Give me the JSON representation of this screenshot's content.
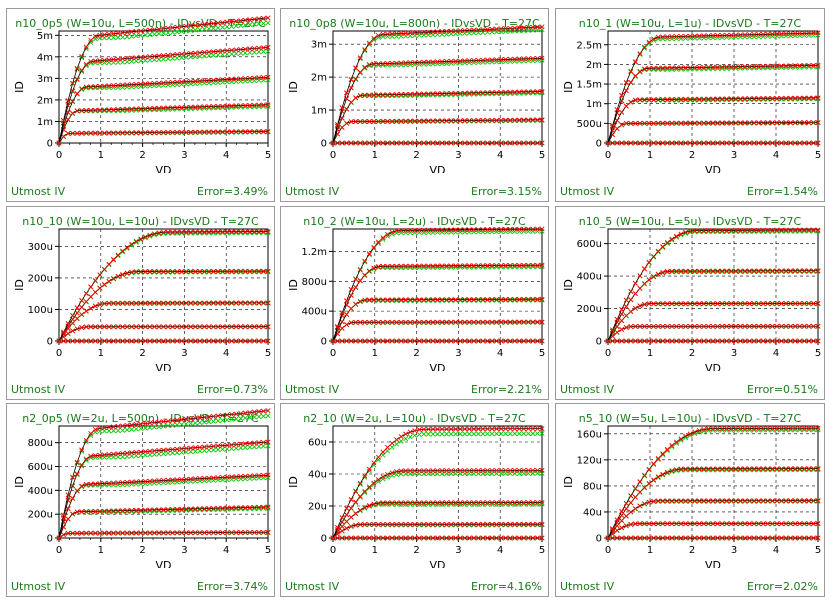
{
  "colors": {
    "simulated": "#ff0000",
    "measured": "#00cc00",
    "text": "#1a7a1a",
    "grid": "#000000"
  },
  "chart_data": [
    {
      "type": "line",
      "title": "n10_0p5 (W=10u, L=500n) - IDvsVD - T=27C",
      "xlabel": "VD",
      "ylabel": "ID",
      "xlim": [
        0,
        5
      ],
      "ylim": [
        0,
        0.0052
      ],
      "xticks": [
        0,
        1,
        2,
        3,
        4,
        5
      ],
      "xticklabels": [
        "0",
        "1",
        "2",
        "3",
        "4",
        "5"
      ],
      "yticks": [
        0,
        0.001,
        0.002,
        0.003,
        0.004,
        0.005
      ],
      "yticklabels": [
        "0",
        "1m",
        "2m",
        "3m",
        "4m",
        "5m"
      ],
      "curves_ysat": [
        0.00045,
        0.0015,
        0.0026,
        0.0038,
        0.005
      ],
      "vdsat": [
        0.25,
        0.45,
        0.65,
        0.8,
        0.95
      ],
      "slope": 0.2,
      "spread": 0.04,
      "footer_left": "Utmost IV",
      "footer_right": "Error=3.49%"
    },
    {
      "type": "line",
      "title": "n10_0p8 (W=10u, L=800n) - IDvsVD - T=27C",
      "xlabel": "VD",
      "ylabel": "ID",
      "xlim": [
        0,
        5
      ],
      "ylim": [
        0,
        0.0034
      ],
      "xticks": [
        0,
        1,
        2,
        3,
        4,
        5
      ],
      "xticklabels": [
        "0",
        "1",
        "2",
        "3",
        "4",
        "5"
      ],
      "yticks": [
        0,
        0.001,
        0.002,
        0.003
      ],
      "yticklabels": [
        "0",
        "1m",
        "2m",
        "3m"
      ],
      "curves_ysat": [
        0.0,
        0.00065,
        0.00145,
        0.0024,
        0.0033
      ],
      "vdsat": [
        0.2,
        0.45,
        0.7,
        0.95,
        1.2
      ],
      "slope": 0.09,
      "spread": 0.025,
      "footer_left": "Utmost IV",
      "footer_right": "Error=3.15%"
    },
    {
      "type": "line",
      "title": "n10_1 (W=10u, L=1u) - IDvsVD - T=27C",
      "xlabel": "VD",
      "ylabel": "ID",
      "xlim": [
        0,
        5
      ],
      "ylim": [
        0,
        0.00285
      ],
      "xticks": [
        0,
        1,
        2,
        3,
        4,
        5
      ],
      "xticklabels": [
        "0",
        "1",
        "2",
        "3",
        "4",
        "5"
      ],
      "yticks": [
        0,
        0.0005,
        0.001,
        0.0015,
        0.002,
        0.0025
      ],
      "yticklabels": [
        "0",
        "500u",
        "1m",
        "1.5m",
        "2m",
        "2.5m"
      ],
      "curves_ysat": [
        0.0,
        0.0005,
        0.0011,
        0.0019,
        0.0027
      ],
      "vdsat": [
        0.2,
        0.45,
        0.7,
        0.95,
        1.25
      ],
      "slope": 0.05,
      "spread": 0.02,
      "footer_left": "Utmost IV",
      "footer_right": "Error=1.54%"
    },
    {
      "type": "line",
      "title": "n10_10 (W=10u, L=10u) - IDvsVD - T=27C",
      "xlabel": "VD",
      "ylabel": "ID",
      "xlim": [
        0,
        5
      ],
      "ylim": [
        0,
        0.000355
      ],
      "xticks": [
        0,
        1,
        2,
        3,
        4,
        5
      ],
      "xticklabels": [
        "0",
        "1",
        "2",
        "3",
        "4",
        "5"
      ],
      "yticks": [
        0,
        0.0001,
        0.0002,
        0.0003
      ],
      "yticklabels": [
        "0",
        "100u",
        "200u",
        "300u"
      ],
      "curves_ysat": [
        0.0,
        4.5e-05,
        0.00012,
        0.00022,
        0.000345
      ],
      "vdsat": [
        0.3,
        0.7,
        1.2,
        1.9,
        2.6
      ],
      "slope": 0.01,
      "spread": 0.01,
      "footer_left": "Utmost IV",
      "footer_right": "Error=0.73%"
    },
    {
      "type": "line",
      "title": "n10_2 (W=10u, L=2u) - IDvsVD - T=27C",
      "xlabel": "VD",
      "ylabel": "ID",
      "xlim": [
        0,
        5
      ],
      "ylim": [
        0,
        0.0015
      ],
      "xticks": [
        0,
        1,
        2,
        3,
        4,
        5
      ],
      "xticklabels": [
        "0",
        "1",
        "2",
        "3",
        "4",
        "5"
      ],
      "yticks": [
        0,
        0.0004,
        0.0008,
        0.0012
      ],
      "yticklabels": [
        "0",
        "400u",
        "800u",
        "1.2m"
      ],
      "curves_ysat": [
        0.0,
        0.00025,
        0.00055,
        0.001,
        0.00148
      ],
      "vdsat": [
        0.2,
        0.5,
        0.8,
        1.15,
        1.6
      ],
      "slope": 0.02,
      "spread": 0.02,
      "footer_left": "Utmost IV",
      "footer_right": "Error=2.21%"
    },
    {
      "type": "line",
      "title": "n10_5 (W=10u, L=5u) - IDvsVD - T=27C",
      "xlabel": "VD",
      "ylabel": "ID",
      "xlim": [
        0,
        5
      ],
      "ylim": [
        0,
        0.00069
      ],
      "xticks": [
        0,
        1,
        2,
        3,
        4,
        5
      ],
      "xticklabels": [
        "0",
        "1",
        "2",
        "3",
        "4",
        "5"
      ],
      "yticks": [
        0,
        0.0002,
        0.0004,
        0.0006
      ],
      "yticklabels": [
        "0",
        "200u",
        "400u",
        "600u"
      ],
      "curves_ysat": [
        0.0,
        9e-05,
        0.00023,
        0.00043,
        0.00068
      ],
      "vdsat": [
        0.25,
        0.6,
        1.0,
        1.5,
        2.1
      ],
      "slope": 0.01,
      "spread": 0.01,
      "footer_left": "Utmost IV",
      "footer_right": "Error=0.51%"
    },
    {
      "type": "line",
      "title": "n2_0p5 (W=2u, L=500n) - IDvsVD - T=27C",
      "xlabel": "VD",
      "ylabel": "ID",
      "xlim": [
        0,
        5
      ],
      "ylim": [
        0,
        0.00094
      ],
      "xticks": [
        0,
        1,
        2,
        3,
        4,
        5
      ],
      "xticklabels": [
        "0",
        "1",
        "2",
        "3",
        "4",
        "5"
      ],
      "yticks": [
        0,
        0.0002,
        0.0004,
        0.0006,
        0.0008
      ],
      "yticklabels": [
        "0",
        "200u",
        "400u",
        "600u",
        "800u"
      ],
      "curves_ysat": [
        4e-05,
        0.00022,
        0.00045,
        0.00069,
        0.00092
      ],
      "vdsat": [
        0.25,
        0.45,
        0.65,
        0.8,
        0.95
      ],
      "slope": 0.2,
      "spread": 0.04,
      "footer_left": "Utmost IV",
      "footer_right": "Error=3.74%"
    },
    {
      "type": "line",
      "title": "n2_10 (W=2u, L=10u) - IDvsVD - T=27C",
      "xlabel": "VD",
      "ylabel": "ID",
      "xlim": [
        0,
        5
      ],
      "ylim": [
        0,
        7e-05
      ],
      "xticks": [
        0,
        1,
        2,
        3,
        4,
        5
      ],
      "xticklabels": [
        "0",
        "1",
        "2",
        "3",
        "4",
        "5"
      ],
      "yticks": [
        0,
        2e-05,
        4e-05,
        6e-05
      ],
      "yticklabels": [
        "0",
        "20u",
        "40u",
        "60u"
      ],
      "curves_ysat": [
        0.0,
        8.5e-06,
        2.2e-05,
        4.2e-05,
        6.8e-05
      ],
      "vdsat": [
        0.3,
        0.7,
        1.2,
        1.7,
        2.2
      ],
      "slope": 0.01,
      "spread": 0.045,
      "footer_left": "Utmost IV",
      "footer_right": "Error=4.16%"
    },
    {
      "type": "line",
      "title": "n5_10 (W=5u, L=10u) - IDvsVD - T=27C",
      "xlabel": "VD",
      "ylabel": "ID",
      "xlim": [
        0,
        5
      ],
      "ylim": [
        0,
        0.000172
      ],
      "xticks": [
        0,
        1,
        2,
        3,
        4,
        5
      ],
      "xticklabels": [
        "0",
        "1",
        "2",
        "3",
        "4",
        "5"
      ],
      "yticks": [
        0,
        4e-05,
        8e-05,
        0.00012,
        0.00016
      ],
      "yticklabels": [
        "0",
        "40u",
        "80u",
        "120u",
        "160u"
      ],
      "curves_ysat": [
        0.0,
        2.2e-05,
        5.7e-05,
        0.000106,
        0.000168
      ],
      "vdsat": [
        0.3,
        0.7,
        1.2,
        1.8,
        2.5
      ],
      "slope": 0.008,
      "spread": 0.015,
      "footer_left": "Utmost IV",
      "footer_right": "Error=2.02%"
    }
  ]
}
